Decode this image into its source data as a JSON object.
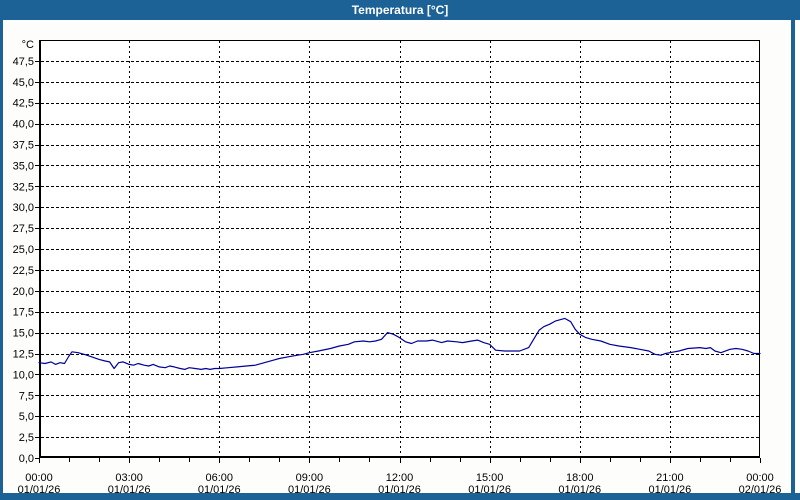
{
  "window": {
    "title": "Temperatura [°C]"
  },
  "colors": {
    "titlebar": "#1C6296",
    "frame": "#1C6296",
    "content_bg": "#FDFDFB",
    "plot_bg": "#FFFFFF",
    "grid": "#000000",
    "axis_text": "#000000",
    "series_line": "#000099"
  },
  "chart_data": {
    "type": "line",
    "title": "Temperatura [°C]",
    "y_unit_label": "°C",
    "ylim": [
      0,
      50
    ],
    "y_tick_step": 2.5,
    "y_tick_labels": [
      "0,0",
      "2,5",
      "5,0",
      "7,5",
      "10,0",
      "12,5",
      "15,0",
      "17,5",
      "20,0",
      "22,5",
      "25,0",
      "27,5",
      "30,0",
      "32,5",
      "35,0",
      "37,5",
      "40,0",
      "42,5",
      "45,0",
      "47,5"
    ],
    "x_range_hours": [
      0,
      24
    ],
    "x_major_step_hours": 3,
    "x_minor_step_hours": 1,
    "x_ticks": [
      {
        "hour": 0,
        "time": "00:00",
        "date": "01/01/26"
      },
      {
        "hour": 3,
        "time": "03:00",
        "date": "01/01/26"
      },
      {
        "hour": 6,
        "time": "06:00",
        "date": "01/01/26"
      },
      {
        "hour": 9,
        "time": "09:00",
        "date": "01/01/26"
      },
      {
        "hour": 12,
        "time": "12:00",
        "date": "01/01/26"
      },
      {
        "hour": 15,
        "time": "15:00",
        "date": "01/01/26"
      },
      {
        "hour": 18,
        "time": "18:00",
        "date": "01/01/26"
      },
      {
        "hour": 21,
        "time": "21:00",
        "date": "01/01/26"
      },
      {
        "hour": 24,
        "time": "00:00",
        "date": "02/01/26"
      }
    ],
    "grid": "dashed",
    "legend": "none",
    "series": [
      {
        "name": "Temperatura",
        "color": "#000099",
        "points": [
          [
            0.0,
            11.4
          ],
          [
            0.2,
            11.3
          ],
          [
            0.4,
            11.5
          ],
          [
            0.55,
            11.2
          ],
          [
            0.7,
            11.4
          ],
          [
            0.85,
            11.3
          ],
          [
            1.0,
            12.2
          ],
          [
            1.1,
            12.7
          ],
          [
            1.3,
            12.6
          ],
          [
            1.5,
            12.4
          ],
          [
            1.75,
            12.1
          ],
          [
            2.0,
            11.8
          ],
          [
            2.2,
            11.6
          ],
          [
            2.35,
            11.5
          ],
          [
            2.5,
            10.7
          ],
          [
            2.65,
            11.4
          ],
          [
            2.8,
            11.5
          ],
          [
            3.0,
            11.2
          ],
          [
            3.15,
            11.1
          ],
          [
            3.3,
            11.3
          ],
          [
            3.5,
            11.1
          ],
          [
            3.65,
            11.0
          ],
          [
            3.8,
            11.2
          ],
          [
            4.0,
            10.9
          ],
          [
            4.2,
            10.8
          ],
          [
            4.35,
            11.0
          ],
          [
            4.5,
            10.9
          ],
          [
            4.7,
            10.7
          ],
          [
            4.85,
            10.6
          ],
          [
            5.0,
            10.8
          ],
          [
            5.2,
            10.7
          ],
          [
            5.4,
            10.6
          ],
          [
            5.55,
            10.7
          ],
          [
            5.7,
            10.6
          ],
          [
            5.85,
            10.7
          ],
          [
            6.0,
            10.7
          ],
          [
            6.3,
            10.8
          ],
          [
            6.6,
            10.9
          ],
          [
            6.9,
            11.0
          ],
          [
            7.2,
            11.1
          ],
          [
            7.5,
            11.4
          ],
          [
            7.8,
            11.7
          ],
          [
            8.0,
            11.9
          ],
          [
            8.3,
            12.1
          ],
          [
            8.6,
            12.3
          ],
          [
            8.8,
            12.4
          ],
          [
            9.0,
            12.6
          ],
          [
            9.3,
            12.8
          ],
          [
            9.7,
            13.1
          ],
          [
            10.0,
            13.4
          ],
          [
            10.3,
            13.6
          ],
          [
            10.5,
            13.9
          ],
          [
            10.8,
            14.0
          ],
          [
            11.0,
            13.9
          ],
          [
            11.2,
            14.0
          ],
          [
            11.4,
            14.2
          ],
          [
            11.6,
            15.0
          ],
          [
            11.8,
            14.8
          ],
          [
            12.0,
            14.4
          ],
          [
            12.2,
            13.9
          ],
          [
            12.4,
            13.7
          ],
          [
            12.6,
            14.0
          ],
          [
            12.9,
            14.0
          ],
          [
            13.1,
            14.1
          ],
          [
            13.4,
            13.8
          ],
          [
            13.6,
            14.0
          ],
          [
            13.9,
            13.9
          ],
          [
            14.1,
            13.8
          ],
          [
            14.4,
            14.0
          ],
          [
            14.6,
            14.1
          ],
          [
            14.8,
            13.8
          ],
          [
            15.0,
            13.6
          ],
          [
            15.2,
            12.9
          ],
          [
            15.5,
            12.8
          ],
          [
            15.8,
            12.8
          ],
          [
            16.0,
            12.8
          ],
          [
            16.3,
            13.2
          ],
          [
            16.5,
            14.4
          ],
          [
            16.65,
            15.3
          ],
          [
            16.8,
            15.7
          ],
          [
            17.0,
            16.0
          ],
          [
            17.2,
            16.4
          ],
          [
            17.5,
            16.7
          ],
          [
            17.7,
            16.3
          ],
          [
            17.85,
            15.4
          ],
          [
            18.0,
            14.8
          ],
          [
            18.2,
            14.4
          ],
          [
            18.4,
            14.2
          ],
          [
            18.7,
            14.0
          ],
          [
            19.0,
            13.6
          ],
          [
            19.3,
            13.4
          ],
          [
            19.7,
            13.2
          ],
          [
            20.0,
            13.0
          ],
          [
            20.3,
            12.8
          ],
          [
            20.5,
            12.4
          ],
          [
            20.7,
            12.3
          ],
          [
            20.85,
            12.5
          ],
          [
            21.0,
            12.6
          ],
          [
            21.3,
            12.8
          ],
          [
            21.6,
            13.1
          ],
          [
            22.0,
            13.2
          ],
          [
            22.2,
            13.1
          ],
          [
            22.35,
            13.2
          ],
          [
            22.5,
            12.8
          ],
          [
            22.7,
            12.6
          ],
          [
            23.0,
            13.0
          ],
          [
            23.2,
            13.1
          ],
          [
            23.4,
            13.0
          ],
          [
            23.6,
            12.8
          ],
          [
            23.8,
            12.5
          ],
          [
            24.0,
            12.5
          ]
        ]
      }
    ]
  }
}
